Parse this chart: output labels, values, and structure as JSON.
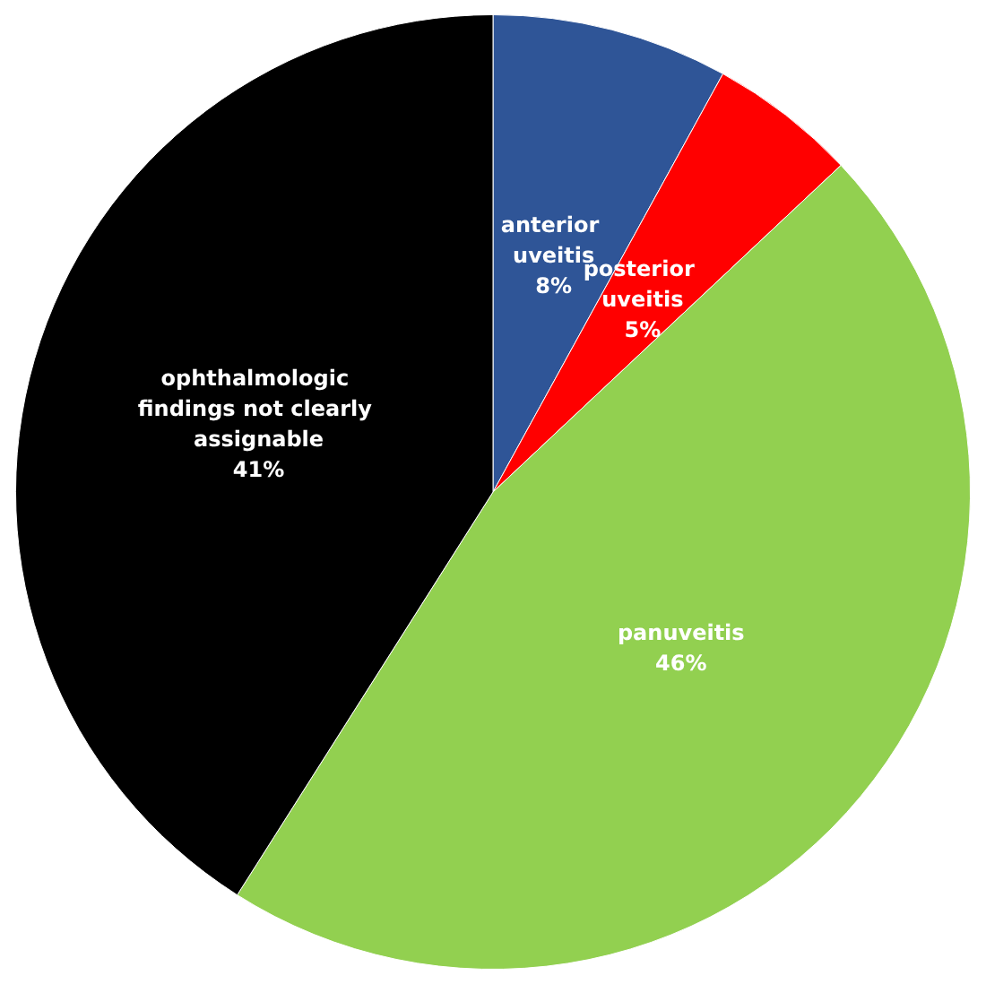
{
  "chart_data": {
    "type": "pie",
    "categories": [
      "anterior uveitis",
      "posterior uveitis",
      "panuveitis",
      "ophthalmologic findings not clearly assignable"
    ],
    "values": [
      8,
      5,
      46,
      41
    ],
    "colors": [
      "#2f5597",
      "#ff0000",
      "#92d050",
      "#000000"
    ],
    "value_labels": [
      "8%",
      "5%",
      "46%",
      "41%"
    ],
    "legend": false
  }
}
